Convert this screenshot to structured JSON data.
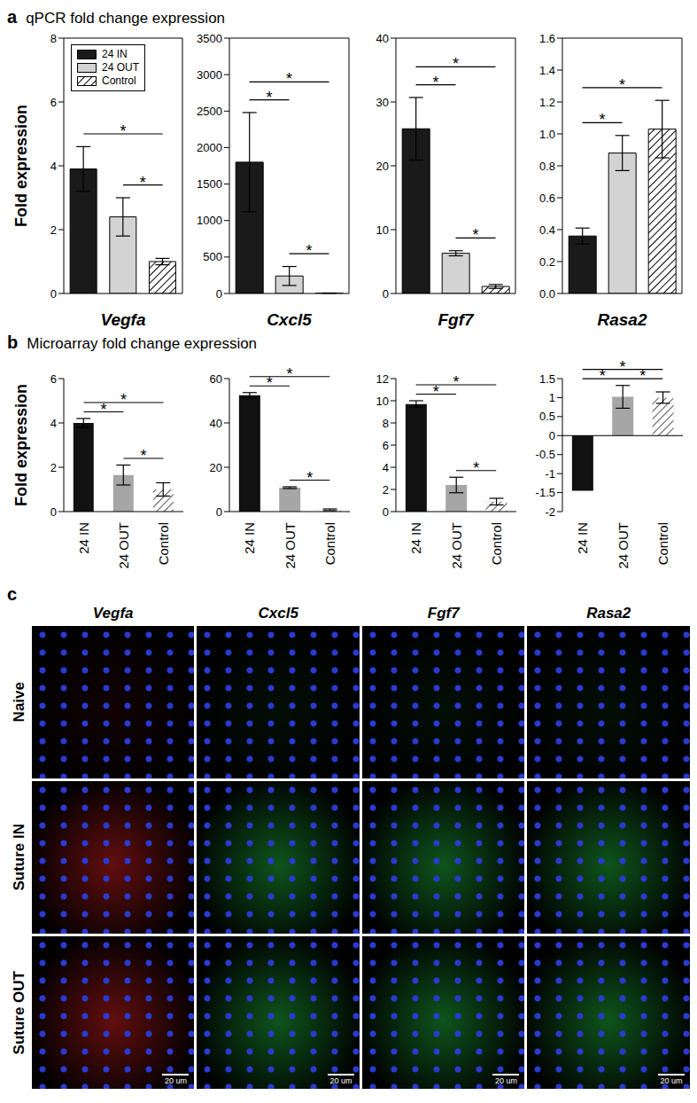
{
  "chart_data": [
    {
      "type": "bar",
      "ylabel": "Fold expression",
      "xlabel": "Vegfa",
      "categories": [
        "24 IN",
        "24 OUT",
        "Control"
      ],
      "values": [
        3.9,
        2.4,
        1.0
      ],
      "errors": [
        0.7,
        0.6,
        0.1
      ],
      "colors": [
        "#1a1a1a",
        "#d3d3d3",
        "#ffffff"
      ],
      "ylim": [
        0,
        8
      ],
      "yticks": [
        0,
        2,
        4,
        6,
        8
      ],
      "tick_labels": "y",
      "legend": "top-left",
      "annotations": [
        {
          "from": "24 OUT",
          "to": "Control",
          "text": "*"
        },
        {
          "from": "24 IN",
          "to": "Control",
          "text": "*"
        }
      ]
    },
    {
      "type": "bar",
      "xlabel": "Cxcl5",
      "categories": [
        "24 IN",
        "24 OUT",
        "Control"
      ],
      "values": [
        1800,
        240,
        5
      ],
      "errors": [
        680,
        130,
        2
      ],
      "colors": [
        "#1a1a1a",
        "#d3d3d3",
        "#ffffff"
      ],
      "ylim": [
        0,
        3500
      ],
      "yticks": [
        0,
        500,
        1000,
        1500,
        2000,
        2500,
        3000,
        3500
      ],
      "tick_labels": "y",
      "annotations": [
        {
          "from": "24 IN",
          "to": "24 OUT",
          "text": "*"
        },
        {
          "from": "24 OUT",
          "to": "Control",
          "text": "*"
        },
        {
          "from": "24 IN",
          "to": "Control",
          "text": "*"
        }
      ]
    },
    {
      "type": "bar",
      "xlabel": "Fgf7",
      "categories": [
        "24 IN",
        "24 OUT",
        "Control"
      ],
      "values": [
        25.8,
        6.3,
        1.1
      ],
      "errors": [
        4.9,
        0.4,
        0.3
      ],
      "colors": [
        "#1a1a1a",
        "#d3d3d3",
        "#ffffff"
      ],
      "ylim": [
        0,
        40
      ],
      "yticks": [
        0,
        10,
        20,
        30,
        40
      ],
      "tick_labels": "y",
      "annotations": [
        {
          "from": "24 IN",
          "to": "24 OUT",
          "text": "*"
        },
        {
          "from": "24 OUT",
          "to": "Control",
          "text": "*"
        },
        {
          "from": "24 IN",
          "to": "Control",
          "text": "*"
        }
      ]
    },
    {
      "type": "bar",
      "xlabel": "Rasa2",
      "categories": [
        "24 IN",
        "24 OUT",
        "Control"
      ],
      "values": [
        0.36,
        0.88,
        1.03
      ],
      "errors": [
        0.05,
        0.11,
        0.18
      ],
      "colors": [
        "#1a1a1a",
        "#d3d3d3",
        "#ffffff"
      ],
      "ylim": [
        0,
        1.6
      ],
      "yticks": [
        {
          "value": 0,
          "label": "0.0"
        },
        0.2,
        0.4,
        0.6,
        0.8,
        {
          "value": 1,
          "label": "1.0"
        },
        1.2,
        1.4,
        1.6
      ],
      "tick_labels": "y",
      "annotations": [
        {
          "from": "24 IN",
          "to": "24 OUT",
          "text": "*"
        },
        {
          "from": "24 IN",
          "to": "Control",
          "text": "*"
        }
      ]
    },
    {
      "type": "bar",
      "ylabel": "Fold expression",
      "categories": [
        "24 IN",
        "24 OUT",
        "Control"
      ],
      "values": [
        4.0,
        1.65,
        1.0
      ],
      "errors": [
        0.2,
        0.45,
        0.3
      ],
      "colors": [
        "#111111",
        "#a6a6a6",
        "#ffffff"
      ],
      "ylim": [
        0,
        6
      ],
      "yticks": [
        0,
        2,
        4,
        6
      ],
      "annotations": [
        {
          "from": "24 IN",
          "to": "24 OUT",
          "text": "*"
        },
        {
          "from": "24 OUT",
          "to": "Control",
          "text": "*"
        },
        {
          "from": "24 IN",
          "to": "Control",
          "text": "*"
        }
      ]
    },
    {
      "type": "bar",
      "categories": [
        "24 IN",
        "24 OUT",
        "Control"
      ],
      "values": [
        52.5,
        10.8,
        0.8
      ],
      "errors": [
        1.2,
        0.4,
        0.4
      ],
      "colors": [
        "#111111",
        "#a6a6a6",
        "#ffffff"
      ],
      "ylim": [
        0,
        60
      ],
      "yticks": [
        0,
        20,
        40,
        60
      ],
      "annotations": [
        {
          "from": "24 IN",
          "to": "24 OUT",
          "text": "*"
        },
        {
          "from": "24 OUT",
          "to": "Control",
          "text": "*"
        },
        {
          "from": "24 IN",
          "to": "Control",
          "text": "*"
        }
      ]
    },
    {
      "type": "bar",
      "categories": [
        "24 IN",
        "24 OUT",
        "Control"
      ],
      "values": [
        9.7,
        2.4,
        0.9
      ],
      "errors": [
        0.3,
        0.7,
        0.3
      ],
      "colors": [
        "#111111",
        "#a6a6a6",
        "#ffffff"
      ],
      "ylim": [
        0,
        12
      ],
      "yticks": [
        0,
        2,
        4,
        6,
        8,
        10,
        12
      ],
      "annotations": [
        {
          "from": "24 IN",
          "to": "24 OUT",
          "text": "*"
        },
        {
          "from": "24 OUT",
          "to": "Control",
          "text": "*"
        },
        {
          "from": "24 IN",
          "to": "Control",
          "text": "*"
        }
      ]
    },
    {
      "type": "bar",
      "categories": [
        "24 IN",
        "24 OUT",
        "Control"
      ],
      "values": [
        -1.45,
        1.02,
        1.0
      ],
      "errors": [
        null,
        0.3,
        0.15
      ],
      "colors": [
        "#111111",
        "#a6a6a6",
        "#ffffff"
      ],
      "ylim": [
        -2,
        1.5
      ],
      "yticks": [
        -2,
        -1.5,
        -1,
        -0.5,
        0,
        0.5,
        1,
        1.5
      ],
      "annotations": [
        {
          "from": "24 IN",
          "to": "24 OUT",
          "text": "*"
        },
        {
          "from": "24 OUT",
          "to": "Control",
          "text": "*"
        },
        {
          "from": "24 IN",
          "to": "Control",
          "text": "*"
        }
      ]
    }
  ],
  "panels": [
    {
      "label": "a",
      "title": "qPCR fold change expression"
    },
    {
      "label": "b",
      "title": "Microarray fold change expression"
    },
    {
      "label": "c"
    }
  ],
  "image_grid": {
    "columns": [
      {
        "label": "Vegfa",
        "color": "#e02020"
      },
      {
        "label": "Cxcl5",
        "color": "#20c040"
      },
      {
        "label": "Fgf7",
        "color": "#20c040"
      },
      {
        "label": "Rasa2",
        "color": "#20c040"
      }
    ],
    "rows": [
      "Naive",
      "Suture IN",
      "Suture OUT"
    ],
    "scale_bar": "20 um"
  }
}
